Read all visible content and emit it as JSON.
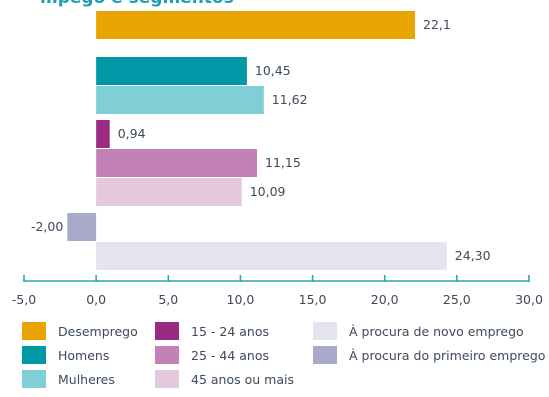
{
  "chart_data": {
    "type": "bar",
    "orientation": "horizontal",
    "title": "",
    "xlabel": "",
    "ylabel": "",
    "xlim": [
      -5,
      30
    ],
    "xticks": [
      "-5,0",
      "0,0",
      "5,0",
      "10,0",
      "15,0",
      "20,0",
      "25,0",
      "30,0"
    ],
    "grid": false,
    "legend_position": "bottom",
    "series": [
      {
        "name": "Desemprego",
        "value": 22.1,
        "label": "22,1",
        "color": "#e8a400"
      },
      {
        "name": "Homens",
        "value": 10.45,
        "label": "10,45",
        "color": "#0097a7"
      },
      {
        "name": "Mulheres",
        "value": 11.62,
        "label": "11,62",
        "color": "#80ced6"
      },
      {
        "name": "15 - 24 anos",
        "value": 0.94,
        "label": "0,94",
        "color": "#9b2a82"
      },
      {
        "name": "25 - 44 anos",
        "value": 11.15,
        "label": "11,15",
        "color": "#c382b6"
      },
      {
        "name": "45 anos ou mais",
        "value": 10.09,
        "label": "10,09",
        "color": "#e3c8de"
      },
      {
        "name": "À procura do primeiro emprego",
        "value": -2.0,
        "label": "-2,00",
        "color": "#a9a9c9"
      },
      {
        "name": "À procura de novo emprego",
        "value": 24.3,
        "label": "24,30",
        "color": "#e4e4ee"
      }
    ],
    "legend": [
      {
        "label": "Desemprego",
        "color": "#e8a400"
      },
      {
        "label": "15 - 24 anos",
        "color": "#9b2a82"
      },
      {
        "label": "À procura de novo emprego",
        "color": "#e4e4ee"
      },
      {
        "label": "Homens",
        "color": "#0097a7"
      },
      {
        "label": "25 - 44 anos",
        "color": "#c382b6"
      },
      {
        "label": "À procura do primeiro emprego",
        "color": "#a9a9c9"
      },
      {
        "label": "Mulheres",
        "color": "#80ced6"
      },
      {
        "label": "45 anos ou mais",
        "color": "#e3c8de"
      }
    ],
    "partial_title_text": "mpego e segmentos"
  },
  "colors": {
    "axis": "#2aa7b8",
    "label_text": "#3c4a5a",
    "title_text": "#1e9fb0"
  }
}
